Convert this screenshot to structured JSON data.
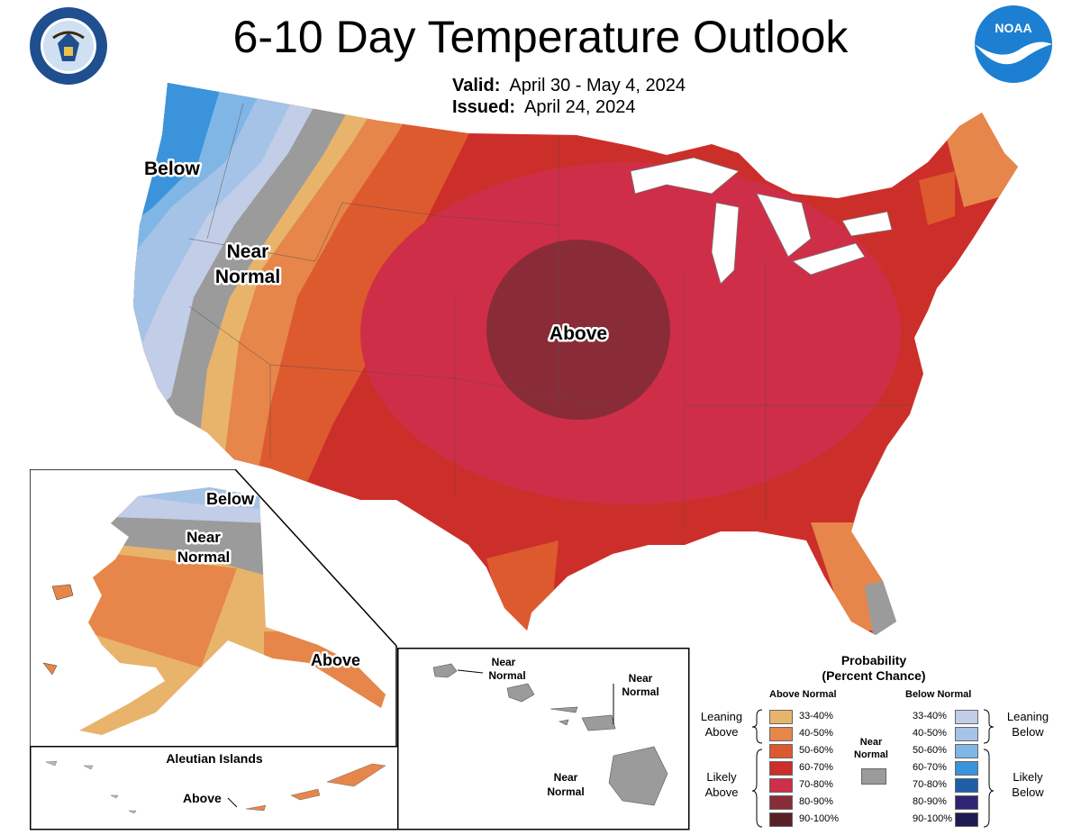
{
  "title": "6-10 Day Temperature Outlook",
  "valid": {
    "label": "Valid:",
    "value": "April 30 - May 4, 2024"
  },
  "issued": {
    "label": "Issued:",
    "value": "April 24, 2024"
  },
  "logos": {
    "left": "department-of-commerce-seal",
    "right": "noaa-logo",
    "noaa_text": "NOAA"
  },
  "conus_labels": {
    "below": "Below",
    "near_1": "Near",
    "near_2": "Normal",
    "above": "Above"
  },
  "alaska_labels": {
    "below": "Below",
    "near_1": "Near",
    "near_2": "Normal",
    "above": "Above"
  },
  "aleutian": {
    "title": "Aleutian Islands",
    "above": "Above"
  },
  "hawaii": {
    "l1a": "Near",
    "l1b": "Normal",
    "l2a": "Near",
    "l2b": "Normal",
    "l3a": "Near",
    "l3b": "Normal"
  },
  "legend": {
    "title_1": "Probability",
    "title_2": "(Percent Chance)",
    "above_header": "Above Normal",
    "below_header": "Below Normal",
    "near_1": "Near",
    "near_2": "Normal",
    "leaning_above_1": "Leaning",
    "leaning_above_2": "Above",
    "likely_above_1": "Likely",
    "likely_above_2": "Above",
    "leaning_below_1": "Leaning",
    "leaning_below_2": "Below",
    "likely_below_1": "Likely",
    "likely_below_2": "Below",
    "above": [
      {
        "range": "33-40%",
        "color": "#e8b46c"
      },
      {
        "range": "40-50%",
        "color": "#e6864a"
      },
      {
        "range": "50-60%",
        "color": "#dd5a2f"
      },
      {
        "range": "60-70%",
        "color": "#cc2f2a"
      },
      {
        "range": "70-80%",
        "color": "#cf2e48"
      },
      {
        "range": "80-90%",
        "color": "#8a2c38"
      },
      {
        "range": "90-100%",
        "color": "#5a1f24"
      }
    ],
    "below": [
      {
        "range": "33-40%",
        "color": "#c2cde8"
      },
      {
        "range": "40-50%",
        "color": "#a5c3e6"
      },
      {
        "range": "50-60%",
        "color": "#7fb6e6"
      },
      {
        "range": "60-70%",
        "color": "#3b94db"
      },
      {
        "range": "70-80%",
        "color": "#1e5fa8"
      },
      {
        "range": "80-90%",
        "color": "#2e2474"
      },
      {
        "range": "90-100%",
        "color": "#1f1a50"
      }
    ],
    "near_color": "#9b9b9b"
  }
}
